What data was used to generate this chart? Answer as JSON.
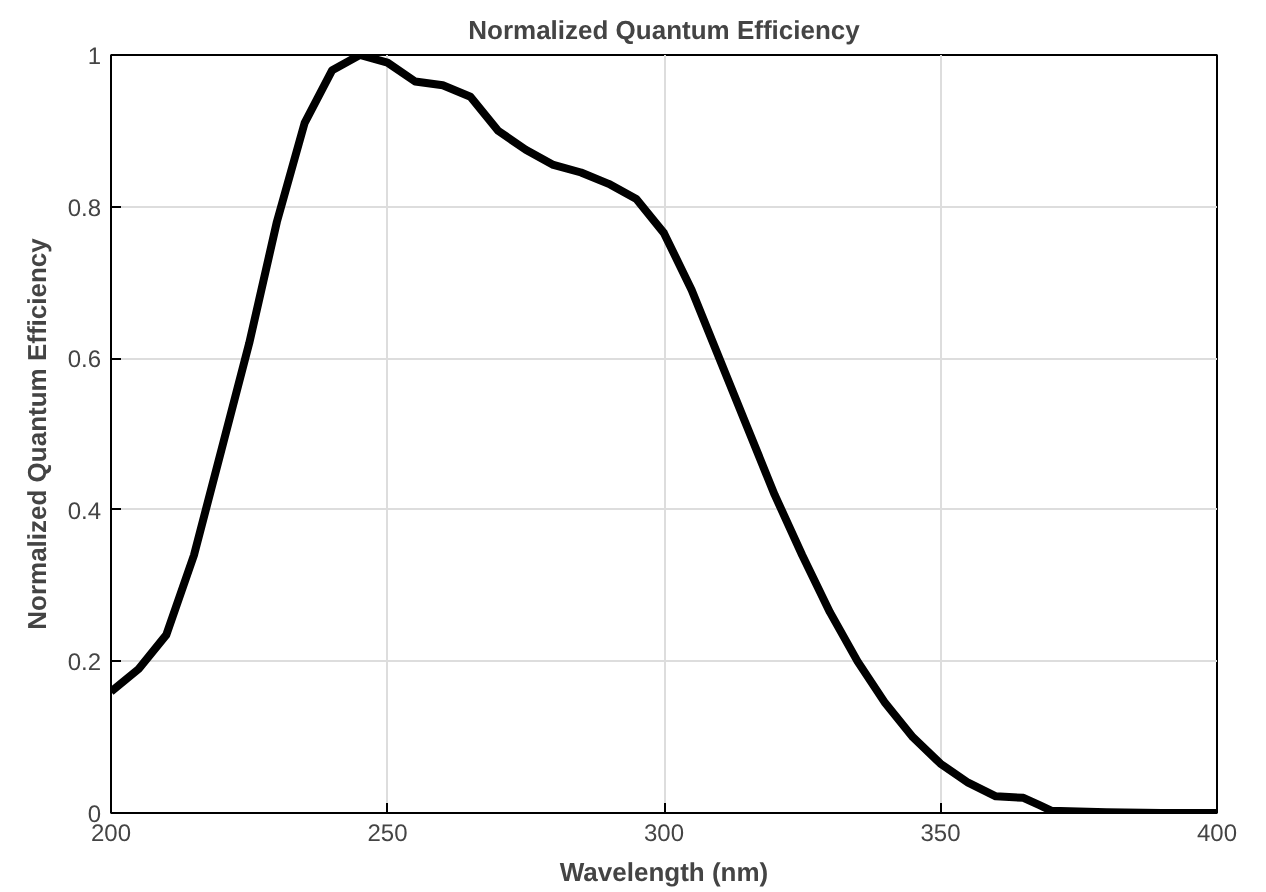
{
  "chart_data": {
    "type": "line",
    "title": "Normalized Quantum Efficiency",
    "xlabel": "Wavelength (nm)",
    "ylabel": "Normalized Quantum Efficiency",
    "x": [
      200,
      205,
      210,
      215,
      220,
      225,
      230,
      235,
      240,
      245,
      250,
      255,
      260,
      265,
      270,
      275,
      280,
      285,
      290,
      295,
      300,
      305,
      310,
      315,
      320,
      325,
      330,
      335,
      340,
      345,
      350,
      355,
      360,
      365,
      368,
      370,
      380,
      390,
      400
    ],
    "series": [
      {
        "color": "#000000",
        "values": [
          0.16,
          0.19,
          0.235,
          0.34,
          0.48,
          0.62,
          0.78,
          0.91,
          0.98,
          1.0,
          0.99,
          0.965,
          0.96,
          0.945,
          0.9,
          0.875,
          0.855,
          0.845,
          0.83,
          0.81,
          0.765,
          0.69,
          0.6,
          0.51,
          0.42,
          0.34,
          0.265,
          0.2,
          0.145,
          0.1,
          0.065,
          0.04,
          0.022,
          0.02,
          0.01,
          0.003,
          0.001,
          0.0,
          0.0
        ]
      }
    ],
    "xlim": [
      200,
      400
    ],
    "ylim": [
      0,
      1
    ],
    "xticks": [
      200,
      250,
      300,
      350,
      400
    ],
    "yticks": [
      0,
      0.2,
      0.4,
      0.6,
      0.8,
      1
    ],
    "grid": true,
    "line_style": "solid"
  }
}
